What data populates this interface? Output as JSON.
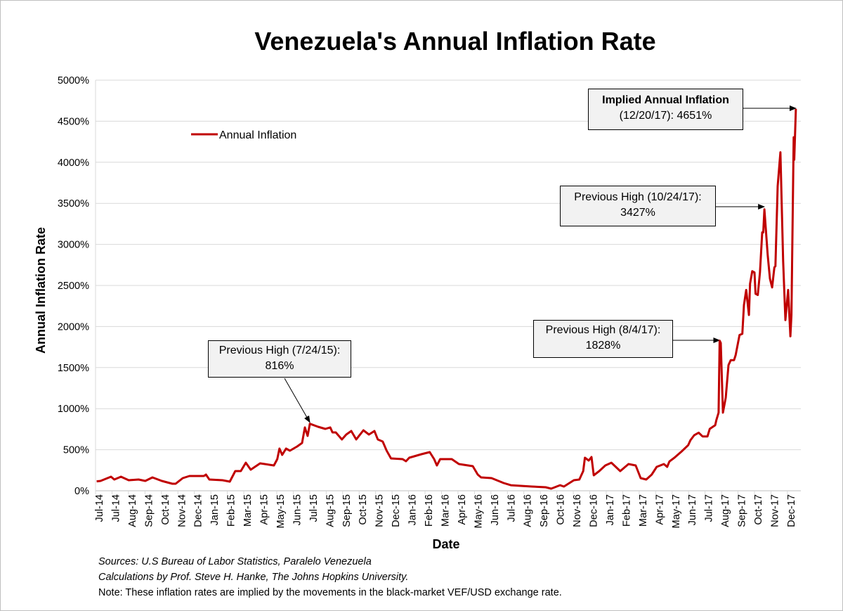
{
  "chart_data": {
    "type": "line",
    "title": "Venezuela's Annual Inflation Rate",
    "xlabel": "Date",
    "ylabel": "Annual Inflation Rate",
    "ylim": [
      0,
      5000
    ],
    "yticks": [
      "0%",
      "500%",
      "1000%",
      "1500%",
      "2000%",
      "2500%",
      "3000%",
      "3500%",
      "4000%",
      "4500%",
      "5000%"
    ],
    "xlim": [
      "2014-07-01",
      "2017-12-29"
    ],
    "xtick_labels": [
      "Jul-14",
      "Jul-14",
      "Aug-14",
      "Sep-14",
      "Oct-14",
      "Nov-14",
      "Dec-14",
      "Jan-15",
      "Feb-15",
      "Mar-15",
      "Apr-15",
      "May-15",
      "Jun-15",
      "Jul-15",
      "Aug-15",
      "Sep-15",
      "Oct-15",
      "Nov-15",
      "Dec-15",
      "Jan-16",
      "Feb-16",
      "Mar-16",
      "Apr-16",
      "May-16",
      "Jun-16",
      "Jul-16",
      "Aug-16",
      "Sep-16",
      "Oct-16",
      "Nov-16",
      "Dec-16",
      "Jan-17",
      "Feb-17",
      "Mar-17",
      "Apr-17",
      "May-17",
      "Jun-17",
      "Jul-17",
      "Aug-17",
      "Sep-17",
      "Oct-17",
      "Nov-17",
      "Dec-17"
    ],
    "grid": "horizontal",
    "legend_position": "top-left",
    "line_color": "#c00000",
    "series": [
      {
        "name": "Annual Inflation",
        "points": [
          [
            "2014-07-03",
            115
          ],
          [
            "2014-07-10",
            120
          ],
          [
            "2014-07-29",
            171
          ],
          [
            "2014-08-04",
            137
          ],
          [
            "2014-08-16",
            171
          ],
          [
            "2014-08-30",
            128
          ],
          [
            "2014-09-17",
            137
          ],
          [
            "2014-09-29",
            120
          ],
          [
            "2014-10-12",
            163
          ],
          [
            "2014-10-29",
            120
          ],
          [
            "2014-11-17",
            86
          ],
          [
            "2014-11-23",
            86
          ],
          [
            "2014-12-06",
            154
          ],
          [
            "2014-12-18",
            180
          ],
          [
            "2015-01-13",
            180
          ],
          [
            "2015-01-17",
            197
          ],
          [
            "2015-01-23",
            137
          ],
          [
            "2015-02-16",
            128
          ],
          [
            "2015-03-01",
            111
          ],
          [
            "2015-03-11",
            240
          ],
          [
            "2015-03-21",
            240
          ],
          [
            "2015-03-30",
            342
          ],
          [
            "2015-04-08",
            257
          ],
          [
            "2015-04-25",
            334
          ],
          [
            "2015-05-20",
            308
          ],
          [
            "2015-05-26",
            385
          ],
          [
            "2015-05-30",
            514
          ],
          [
            "2015-06-04",
            437
          ],
          [
            "2015-06-11",
            514
          ],
          [
            "2015-06-18",
            488
          ],
          [
            "2015-07-01",
            539
          ],
          [
            "2015-07-10",
            582
          ],
          [
            "2015-07-15",
            771
          ],
          [
            "2015-07-20",
            668
          ],
          [
            "2015-07-24",
            816
          ],
          [
            "2015-08-08",
            779
          ],
          [
            "2015-08-21",
            753
          ],
          [
            "2015-08-30",
            771
          ],
          [
            "2015-09-03",
            711
          ],
          [
            "2015-09-09",
            711
          ],
          [
            "2015-09-20",
            625
          ],
          [
            "2015-09-28",
            685
          ],
          [
            "2015-10-07",
            728
          ],
          [
            "2015-10-16",
            625
          ],
          [
            "2015-10-29",
            736
          ],
          [
            "2015-11-08",
            685
          ],
          [
            "2015-11-18",
            728
          ],
          [
            "2015-11-24",
            625
          ],
          [
            "2015-12-03",
            599
          ],
          [
            "2015-12-10",
            490
          ],
          [
            "2015-12-18",
            394
          ],
          [
            "2016-01-08",
            385
          ],
          [
            "2016-01-14",
            360
          ],
          [
            "2016-01-20",
            402
          ],
          [
            "2016-02-11",
            445
          ],
          [
            "2016-02-26",
            471
          ],
          [
            "2016-03-05",
            385
          ],
          [
            "2016-03-10",
            308
          ],
          [
            "2016-03-16",
            385
          ],
          [
            "2016-04-06",
            385
          ],
          [
            "2016-04-19",
            325
          ],
          [
            "2016-05-14",
            300
          ],
          [
            "2016-05-23",
            197
          ],
          [
            "2016-05-29",
            163
          ],
          [
            "2016-06-17",
            154
          ],
          [
            "2016-07-09",
            94
          ],
          [
            "2016-07-22",
            68
          ],
          [
            "2016-08-29",
            51
          ],
          [
            "2016-09-23",
            43
          ],
          [
            "2016-10-03",
            26
          ],
          [
            "2016-10-19",
            68
          ],
          [
            "2016-10-26",
            51
          ],
          [
            "2016-11-13",
            128
          ],
          [
            "2016-11-23",
            137
          ],
          [
            "2016-11-30",
            240
          ],
          [
            "2016-12-03",
            402
          ],
          [
            "2016-12-10",
            368
          ],
          [
            "2016-12-15",
            411
          ],
          [
            "2016-12-19",
            188
          ],
          [
            "2016-12-29",
            240
          ],
          [
            "2017-01-09",
            308
          ],
          [
            "2017-01-20",
            342
          ],
          [
            "2017-02-05",
            240
          ],
          [
            "2017-02-20",
            325
          ],
          [
            "2017-03-05",
            308
          ],
          [
            "2017-03-14",
            154
          ],
          [
            "2017-03-24",
            137
          ],
          [
            "2017-04-03",
            197
          ],
          [
            "2017-04-12",
            291
          ],
          [
            "2017-04-25",
            325
          ],
          [
            "2017-05-01",
            291
          ],
          [
            "2017-05-05",
            357
          ],
          [
            "2017-05-14",
            402
          ],
          [
            "2017-05-27",
            479
          ],
          [
            "2017-06-08",
            555
          ],
          [
            "2017-06-12",
            616
          ],
          [
            "2017-06-19",
            677
          ],
          [
            "2017-06-27",
            707
          ],
          [
            "2017-07-04",
            662
          ],
          [
            "2017-07-13",
            662
          ],
          [
            "2017-07-17",
            753
          ],
          [
            "2017-07-27",
            799
          ],
          [
            "2017-07-29",
            860
          ],
          [
            "2017-08-02",
            951
          ],
          [
            "2017-08-04",
            1828
          ],
          [
            "2017-08-06",
            1800
          ],
          [
            "2017-08-10",
            951
          ],
          [
            "2017-08-15",
            1134
          ],
          [
            "2017-08-20",
            1530
          ],
          [
            "2017-08-24",
            1591
          ],
          [
            "2017-08-30",
            1591
          ],
          [
            "2017-09-02",
            1652
          ],
          [
            "2017-09-05",
            1759
          ],
          [
            "2017-09-09",
            1896
          ],
          [
            "2017-09-14",
            1911
          ],
          [
            "2017-09-17",
            2262
          ],
          [
            "2017-09-21",
            2445
          ],
          [
            "2017-09-26",
            2140
          ],
          [
            "2017-09-28",
            2521
          ],
          [
            "2017-10-02",
            2674
          ],
          [
            "2017-10-06",
            2659
          ],
          [
            "2017-10-08",
            2399
          ],
          [
            "2017-10-12",
            2384
          ],
          [
            "2017-10-16",
            2659
          ],
          [
            "2017-10-20",
            3146
          ],
          [
            "2017-10-22",
            3146
          ],
          [
            "2017-10-24",
            3427
          ],
          [
            "2017-10-30",
            2872
          ],
          [
            "2017-11-03",
            2582
          ],
          [
            "2017-11-07",
            2476
          ],
          [
            "2017-11-11",
            2720
          ],
          [
            "2017-11-13",
            2735
          ],
          [
            "2017-11-17",
            3710
          ],
          [
            "2017-11-22",
            4122
          ],
          [
            "2017-11-27",
            2796
          ],
          [
            "2017-12-01",
            2079
          ],
          [
            "2017-12-06",
            2445
          ],
          [
            "2017-12-10",
            1881
          ],
          [
            "2017-12-12",
            2140
          ],
          [
            "2017-12-16",
            4305
          ],
          [
            "2017-12-17",
            4031
          ],
          [
            "2017-12-20",
            4651
          ]
        ]
      }
    ],
    "annotations": [
      {
        "line1": "Previous High (7/24/15):",
        "line2": "816%",
        "date": "2015-07-24",
        "value": 816
      },
      {
        "line1": "Previous High (8/4/17):",
        "line2": "1828%",
        "date": "2017-08-04",
        "value": 1828
      },
      {
        "line1": "Previous High (10/24/17):",
        "line2": "3427%",
        "date": "2017-10-24",
        "value": 3427
      },
      {
        "line1": "Implied Annual Inflation",
        "line2": "(12/20/17): 4651%",
        "date": "2017-12-20",
        "value": 4651
      }
    ]
  },
  "footer": {
    "sources": "Sources: U.S Bureau of Labor Statistics, Paralelo Venezuela",
    "calculations": "Calculations by Prof. Steve H. Hanke, The Johns Hopkins University.",
    "note": "Note: These inflation rates are implied by the movements in the black-market VEF/USD exchange rate."
  }
}
